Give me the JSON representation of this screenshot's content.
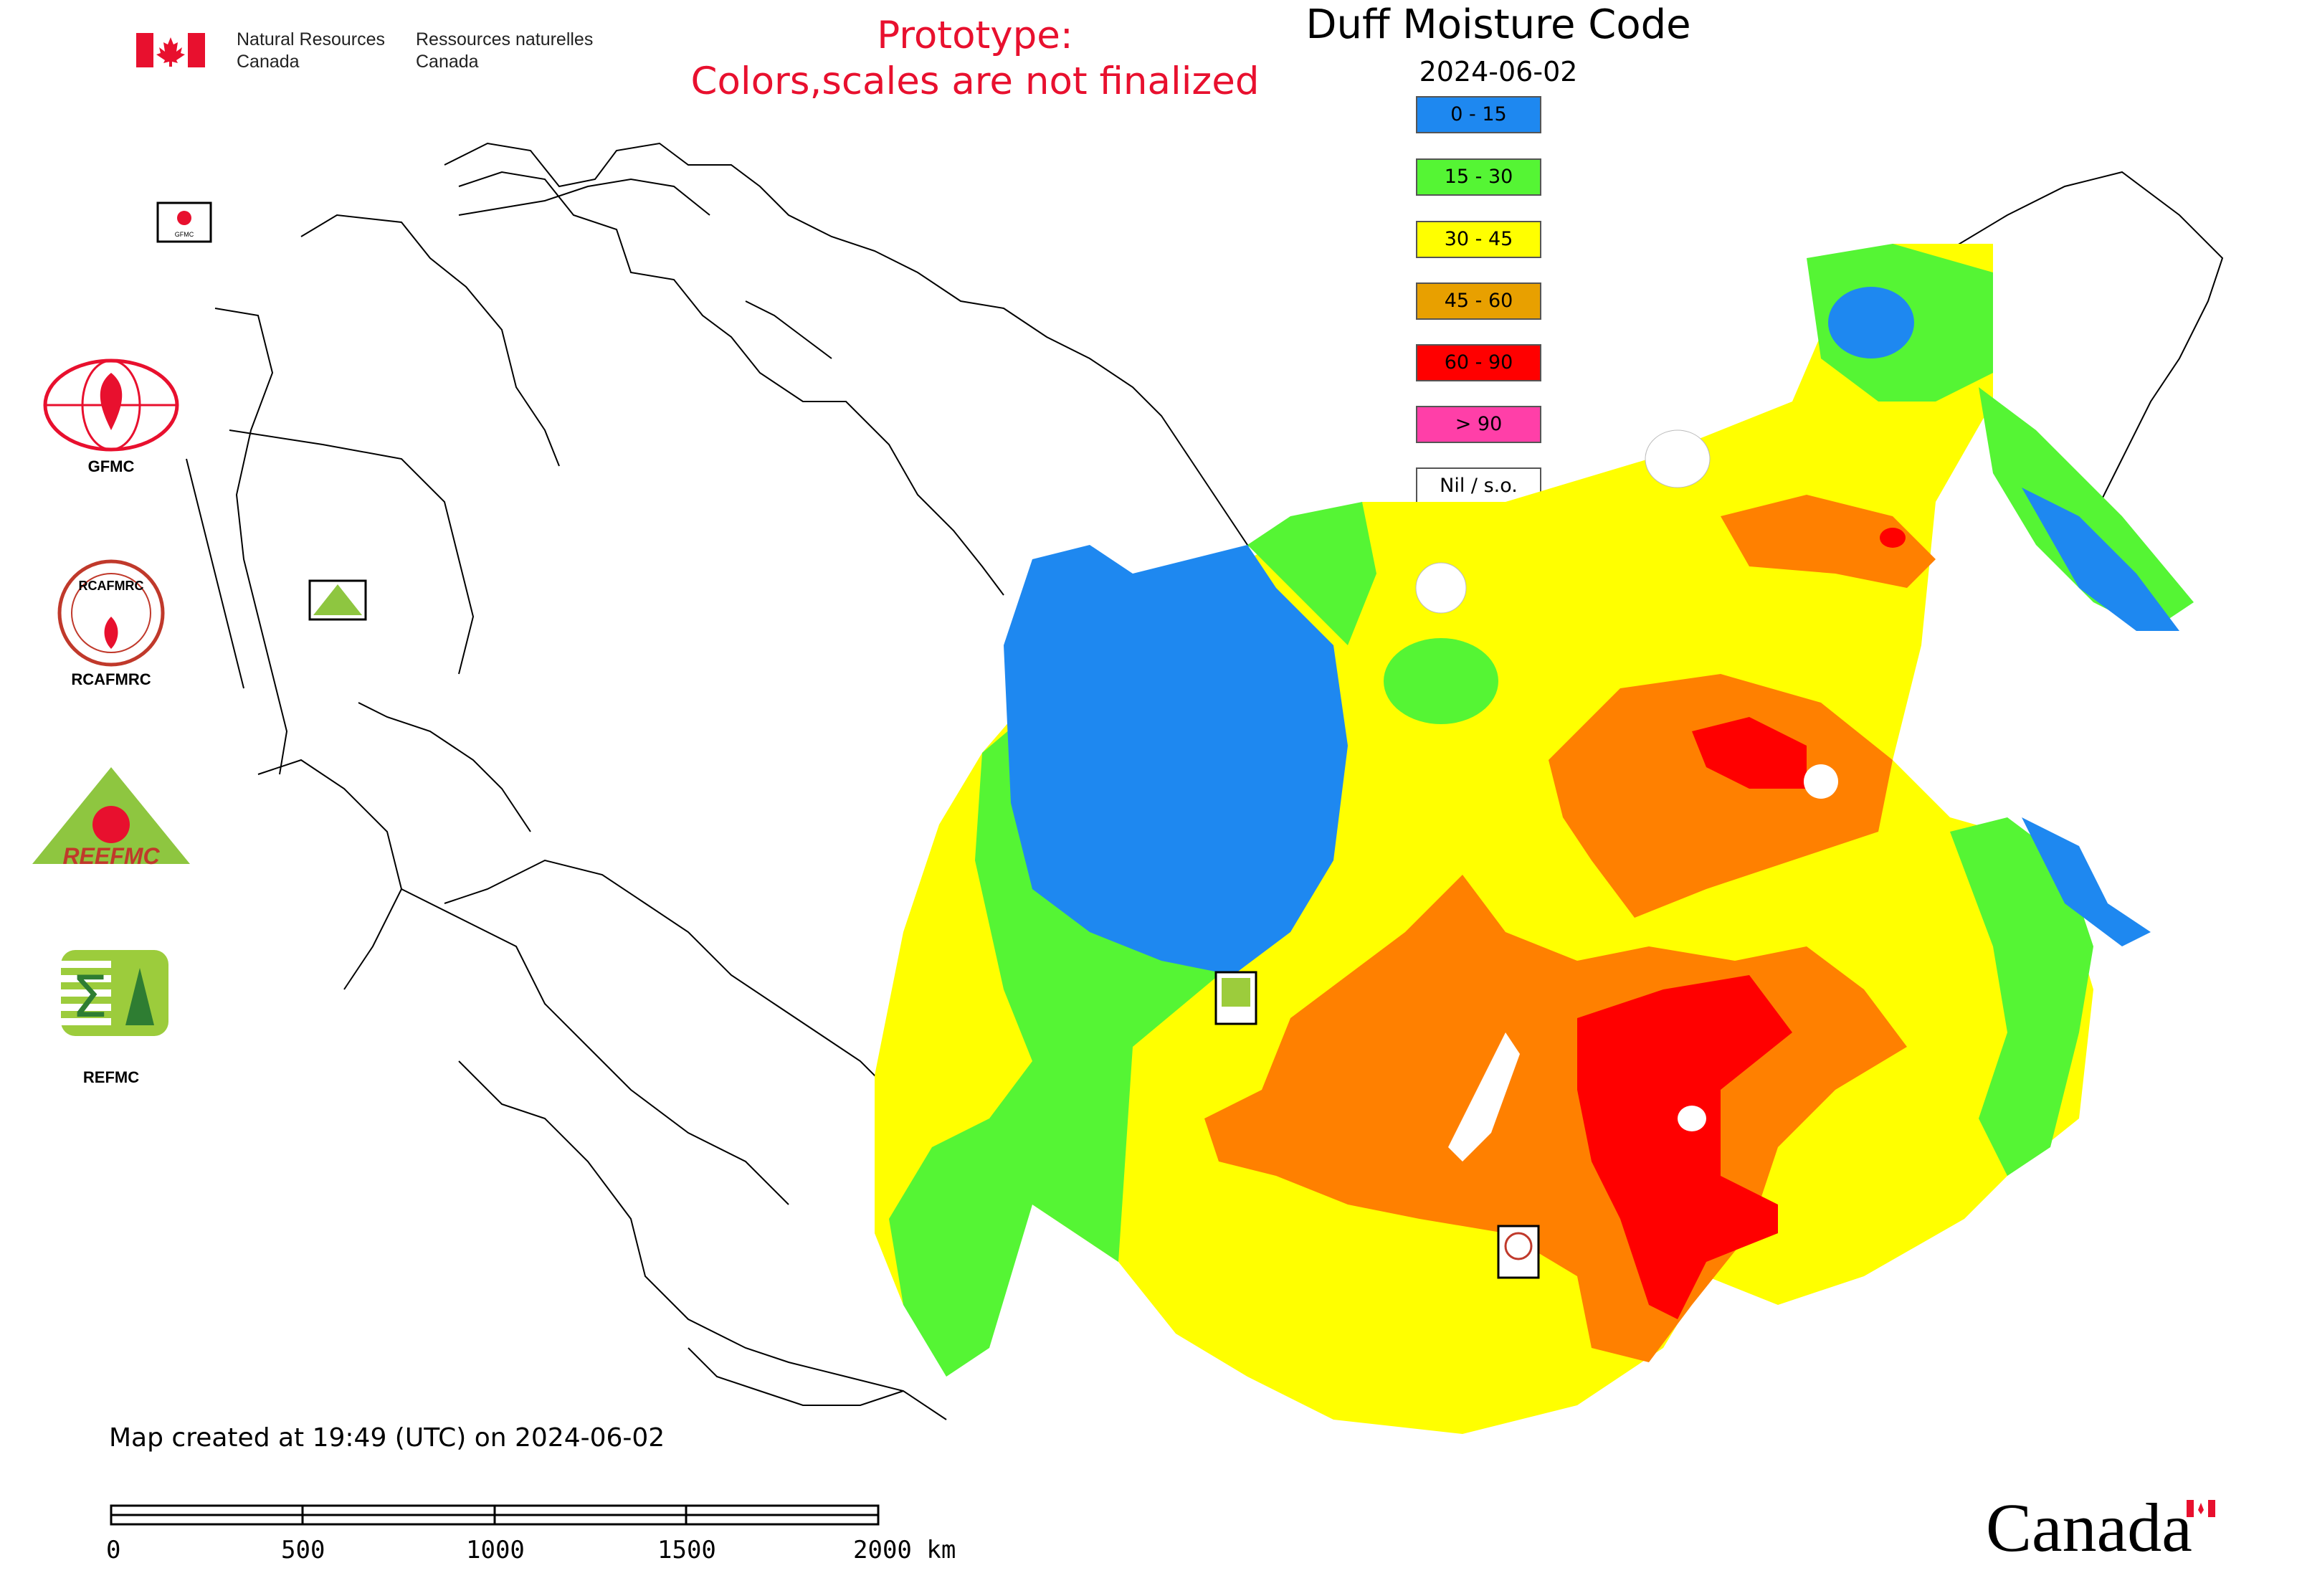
{
  "header": {
    "agency_en_line1": "Natural Resources",
    "agency_en_line2": "Canada",
    "agency_fr_line1": "Ressources naturelles",
    "agency_fr_line2": "Canada",
    "flag_icon": "canada-flag-icon"
  },
  "notice": {
    "line1": "Prototype:",
    "line2": "Colors,scales are not finalized",
    "color": "#e8102e"
  },
  "title": "Duff Moisture Code",
  "date": "2024-06-02",
  "legend": [
    {
      "label": "0 - 15",
      "color": "#1e88f0"
    },
    {
      "label": "15 - 30",
      "color": "#55f534"
    },
    {
      "label": "30 - 45",
      "color": "#ffff00"
    },
    {
      "label": "45 - 60",
      "color": "#e8a000"
    },
    {
      "label": "60 - 90",
      "color": "#ff0000"
    },
    {
      "label": "> 90",
      "color": "#ff3fa8"
    },
    {
      "label": "Nil / s.o.",
      "color": "#ffffff"
    }
  ],
  "orgs": {
    "gfmc": "GFMC",
    "rcafmrc": "RCAFMRC",
    "reefmc": "REEFMC",
    "refmc": "REFMC",
    "reefmc_logo_text": "REEFMC",
    "rcafmrc_logo_text": "RCAFMRC",
    "gfmc_small": "GFMC"
  },
  "footer": {
    "created": "Map created at 19:49 (UTC) on 2024-06-02",
    "scale_labels": [
      "0",
      "500",
      "1000",
      "1500",
      "2000 km"
    ],
    "canada_wordmark": "Canada"
  }
}
